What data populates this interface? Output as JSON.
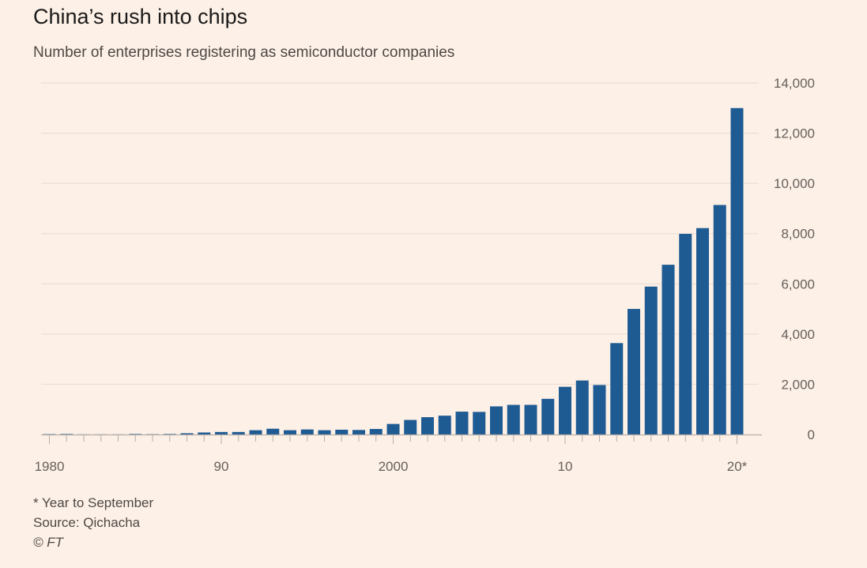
{
  "title": "China’s rush into chips",
  "subtitle": "Number of enterprises registering as semiconductor companies",
  "footnote": "* Year to September",
  "source": "Source: Qichacha",
  "copyright": "© FT",
  "colors": {
    "bar": "#1f5b93",
    "background": "#fdf0e6",
    "grid": "#e6dcd3",
    "axis": "#b8b0a9"
  },
  "chart_data": {
    "type": "bar",
    "x": [
      1980,
      1981,
      1982,
      1983,
      1984,
      1985,
      1986,
      1987,
      1988,
      1989,
      1990,
      1991,
      1992,
      1993,
      1994,
      1995,
      1996,
      1997,
      1998,
      1999,
      2000,
      2001,
      2002,
      2003,
      2004,
      2005,
      2006,
      2007,
      2008,
      2009,
      2010,
      2011,
      2012,
      2013,
      2014,
      2015,
      2016,
      2017,
      2018,
      2019,
      2020
    ],
    "values": [
      15,
      20,
      5,
      5,
      5,
      20,
      10,
      20,
      50,
      80,
      100,
      100,
      170,
      230,
      170,
      200,
      170,
      190,
      180,
      220,
      420,
      580,
      690,
      750,
      910,
      900,
      1120,
      1180,
      1180,
      1420,
      1900,
      2150,
      1970,
      3640,
      5000,
      5890,
      6760,
      7990,
      8220,
      9140,
      13000
    ],
    "ylim": [
      0,
      14000
    ],
    "y_ticks": [
      0,
      2000,
      4000,
      6000,
      8000,
      10000,
      12000,
      14000
    ],
    "y_tick_labels": [
      "0",
      "2,000",
      "4,000",
      "6,000",
      "8,000",
      "10,000",
      "12,000",
      "14,000"
    ],
    "x_tick_labels": [
      {
        "year": 1980,
        "label": "1980"
      },
      {
        "year": 1990,
        "label": "90"
      },
      {
        "year": 2000,
        "label": "2000"
      },
      {
        "year": 2010,
        "label": "10"
      },
      {
        "year": 2020,
        "label": "20*"
      }
    ],
    "y_axis_side": "right",
    "grid": true
  }
}
